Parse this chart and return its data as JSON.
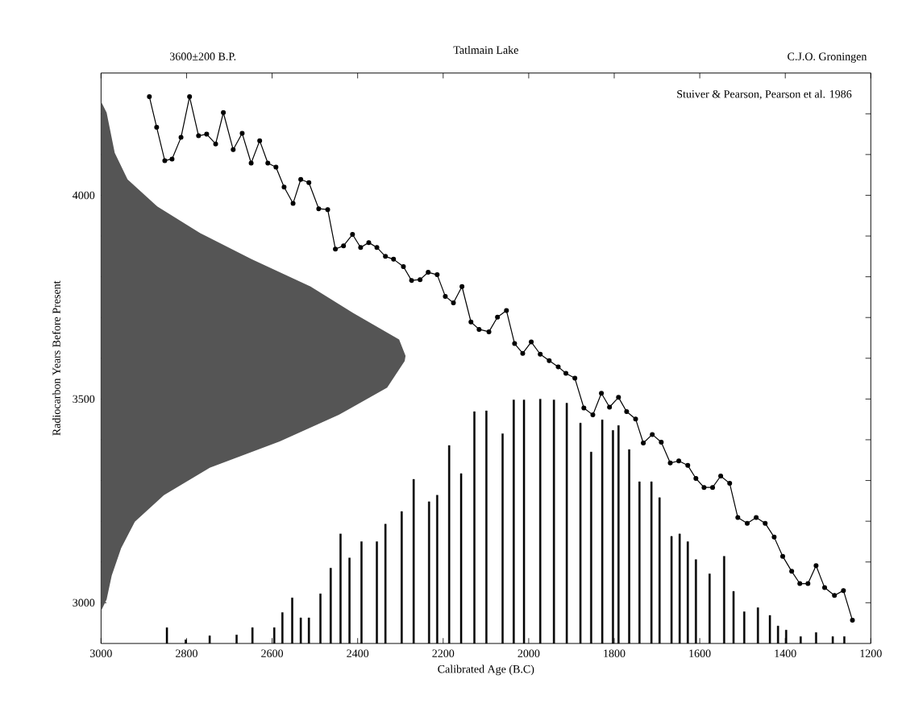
{
  "chart_data": {
    "type": "line",
    "title": "Tatlmain Lake",
    "xlabel": "Calibrated Age (B.C)",
    "ylabel": "Radiocarbon Years Before Present",
    "annotations": [
      "3600±200 B.P.",
      "C.J.O. Groningen",
      "Stuiver & Pearson, Pearson et al. 1986"
    ],
    "xlim": [
      3000,
      1200
    ],
    "xticks": [
      3000,
      2800,
      2600,
      2400,
      2200,
      2000,
      1800,
      1600,
      1400,
      1200
    ],
    "ylim": [
      2900,
      4300
    ],
    "yticks": [
      3000,
      {
        "value": 3100,
        "label": null
      },
      {
        "value": 3200,
        "label": null
      },
      {
        "value": 3300,
        "label": null
      },
      {
        "value": 3400,
        "label": null
      },
      3500,
      {
        "value": 3600,
        "label": null
      },
      {
        "value": 3700,
        "label": null
      },
      {
        "value": 3800,
        "label": null
      },
      {
        "value": 3900,
        "label": null
      },
      4000,
      {
        "value": 4100,
        "label": null
      },
      {
        "value": 4200,
        "label": null
      }
    ],
    "grid": false,
    "series": [
      {
        "type": "area",
        "color": "#555555",
        "x": [
          3000,
          2987,
          2975,
          2953,
          2921,
          2853,
          2746,
          2582,
          2444,
          2331,
          2290,
          2288,
          2303,
          2410,
          2510,
          2648,
          2768,
          2868,
          2938,
          2968,
          2987,
          3000
        ],
        "values": [
          2980,
          3008,
          3067,
          3134,
          3199,
          3264,
          3331,
          3396,
          3461,
          3528,
          3593,
          3606,
          3646,
          3711,
          3776,
          3843,
          3907,
          3972,
          4039,
          4104,
          4203,
          4230
        ]
      },
      {
        "type": "bar",
        "color": "#000000",
        "x": [
          2846,
          2802,
          2746,
          2683,
          2646,
          2595,
          2576,
          2553,
          2533,
          2514,
          2487,
          2463,
          2440,
          2419,
          2391,
          2355,
          2335,
          2297,
          2269,
          2233,
          2214,
          2186,
          2158,
          2127,
          2099,
          2061,
          2035,
          2011,
          1973,
          1941,
          1911,
          1879,
          1854,
          1828,
          1803,
          1790,
          1765,
          1741,
          1713,
          1694,
          1666,
          1647,
          1628,
          1609,
          1577,
          1543,
          1521,
          1496,
          1464,
          1436,
          1417,
          1398,
          1364,
          1328,
          1289,
          1262
        ],
        "values": [
          2939,
          2909,
          2919,
          2921,
          2939,
          2939,
          2976,
          3012,
          2963,
          2963,
          3022,
          3085,
          3169,
          3110,
          3150,
          3150,
          3193,
          3224,
          3303,
          3248,
          3264,
          3386,
          3317,
          3469,
          3471,
          3415,
          3498,
          3498,
          3500,
          3498,
          3490,
          3441,
          3370,
          3449,
          3423,
          3435,
          3376,
          3297,
          3297,
          3258,
          3163,
          3169,
          3150,
          3106,
          3071,
          3114,
          3028,
          2978,
          2988,
          2969,
          2943,
          2933,
          2917,
          2927,
          2917,
          2917
        ]
      },
      {
        "color": "#000000",
        "marker": "circle",
        "line_style": "solid",
        "x": [
          2887,
          2870,
          2851,
          2834,
          2813,
          2793,
          2772,
          2753,
          2732,
          2714,
          2691,
          2670,
          2649,
          2629,
          2610,
          2591,
          2572,
          2551,
          2533,
          2514,
          2491,
          2470,
          2452,
          2433,
          2412,
          2393,
          2374,
          2355,
          2335,
          2316,
          2293,
          2274,
          2254,
          2235,
          2214,
          2195,
          2176,
          2156,
          2135,
          2116,
          2093,
          2073,
          2052,
          2033,
          2014,
          1994,
          1973,
          1952,
          1931,
          1913,
          1892,
          1871,
          1850,
          1830,
          1811,
          1790,
          1771,
          1750,
          1732,
          1711,
          1690,
          1669,
          1649,
          1628,
          1609,
          1590,
          1570,
          1551,
          1530,
          1511,
          1489,
          1468,
          1447,
          1426,
          1406,
          1385,
          1366,
          1347,
          1328,
          1308,
          1285,
          1264,
          1243
        ],
        "values": [
          4242,
          4167,
          4085,
          4089,
          4142,
          4242,
          4146,
          4150,
          4126,
          4203,
          4112,
          4152,
          4079,
          4134,
          4079,
          4069,
          4020,
          3980,
          4039,
          4031,
          3967,
          3965,
          3868,
          3876,
          3904,
          3872,
          3884,
          3872,
          3850,
          3843,
          3825,
          3791,
          3793,
          3811,
          3805,
          3752,
          3736,
          3776,
          3689,
          3671,
          3665,
          3701,
          3717,
          3636,
          3612,
          3640,
          3610,
          3594,
          3579,
          3563,
          3551,
          3478,
          3461,
          3514,
          3480,
          3504,
          3469,
          3451,
          3392,
          3413,
          3394,
          3343,
          3348,
          3337,
          3305,
          3283,
          3283,
          3311,
          3293,
          3209,
          3195,
          3209,
          3195,
          3161,
          3114,
          3077,
          3047,
          3047,
          3091,
          3037,
          3018,
          3030,
          2957
        ]
      }
    ]
  }
}
